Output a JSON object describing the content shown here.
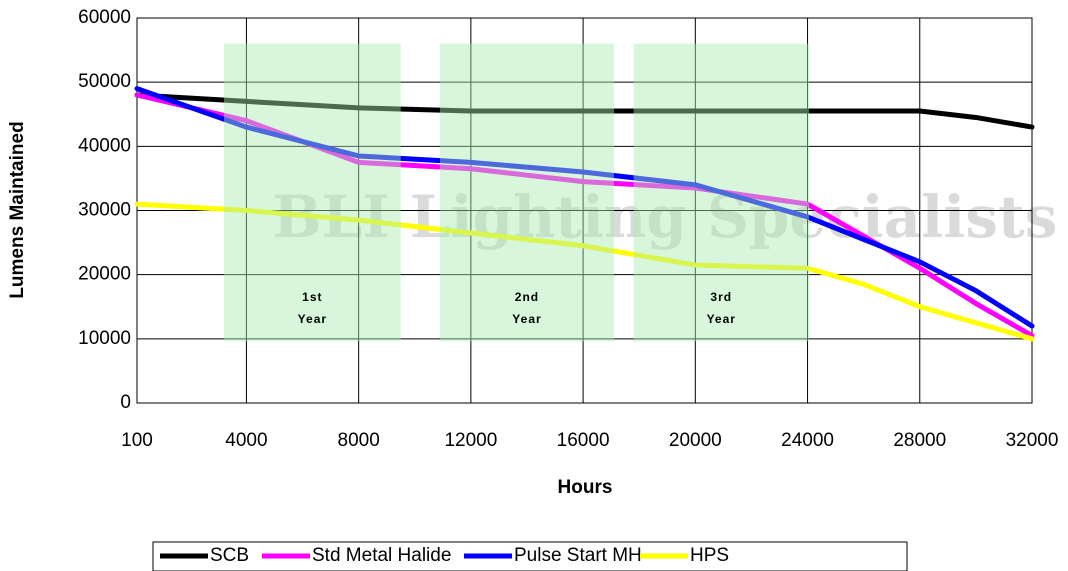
{
  "chart_data": {
    "type": "line",
    "x_label": "Hours",
    "y_label": "Lumens Maintained",
    "watermark": "BLI Lighting Specialists",
    "x": [
      100,
      4000,
      8000,
      12000,
      16000,
      20000,
      24000,
      26000,
      28000,
      30000,
      32000
    ],
    "series": [
      {
        "name": "SCB",
        "color": "#000000",
        "values": [
          48000,
          47000,
          46000,
          45500,
          45500,
          45500,
          45500,
          45500,
          45500,
          44500,
          43000
        ]
      },
      {
        "name": "Std Metal Halide",
        "color": "#ff00ff",
        "values": [
          48000,
          44000,
          37500,
          36500,
          34500,
          33500,
          31000,
          26000,
          21000,
          15500,
          10500
        ]
      },
      {
        "name": "Pulse Start MH",
        "color": "#0000ff",
        "values": [
          49000,
          43000,
          38500,
          37500,
          36000,
          34000,
          29000,
          25500,
          22000,
          17500,
          12000
        ]
      },
      {
        "name": "HPS",
        "color": "#ffff00",
        "values": [
          31000,
          30000,
          28500,
          26500,
          24500,
          21500,
          21000,
          18500,
          15000,
          12500,
          10000
        ]
      }
    ],
    "annotations": [
      {
        "lines": [
          "1st",
          "Year"
        ],
        "xrange": [
          3200,
          9500
        ],
        "yrange": [
          9600,
          56000
        ]
      },
      {
        "lines": [
          "2nd",
          "Year"
        ],
        "xrange": [
          10900,
          17100
        ],
        "yrange": [
          9600,
          56000
        ]
      },
      {
        "lines": [
          "3rd",
          "Year"
        ],
        "xrange": [
          17800,
          24050
        ],
        "yrange": [
          9600,
          56000
        ]
      }
    ],
    "xlim": [
      100,
      32000
    ],
    "xticks": [
      100,
      4000,
      8000,
      12000,
      16000,
      20000,
      24000,
      28000,
      32000
    ],
    "ylim": [
      0,
      60000
    ],
    "yticks": [
      0,
      10000,
      20000,
      30000,
      40000,
      50000,
      60000
    ],
    "grid": true,
    "legend": "bottom"
  }
}
